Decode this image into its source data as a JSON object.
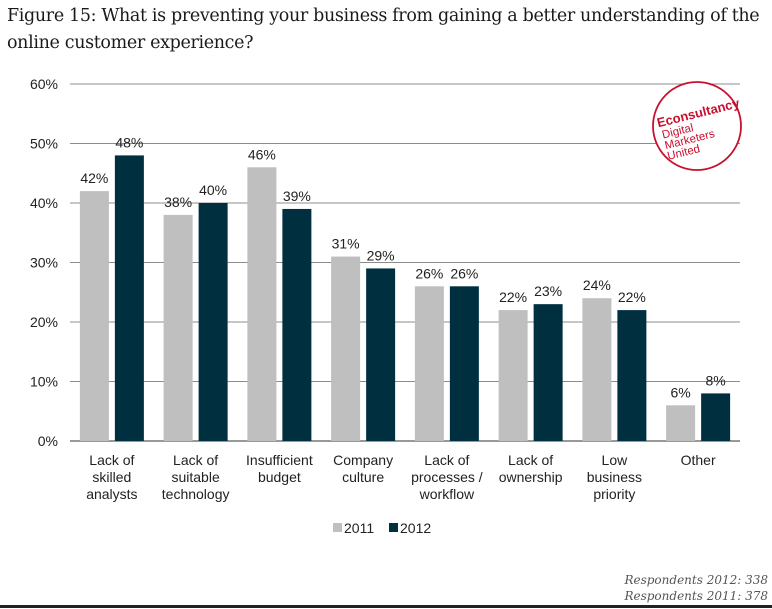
{
  "figure": {
    "title": "Figure 15: What is preventing your business from gaining a better understanding of the online customer experience?"
  },
  "logo": {
    "line1": "Econsultancy",
    "line2": "Digital",
    "line3": "Marketers",
    "line4": "United",
    "mark": "™",
    "color": "#C8102E"
  },
  "respondents": {
    "r2012": "Respondents 2012: 338",
    "r2011": "Respondents 2011: 378"
  },
  "chart_data": {
    "type": "bar",
    "title": "What is preventing your business from gaining a better understanding of the online customer experience?",
    "xlabel": "",
    "ylabel": "",
    "ylim": [
      0,
      60
    ],
    "yticks": [
      0,
      10,
      20,
      30,
      40,
      50,
      60
    ],
    "ytick_labels": [
      "0%",
      "10%",
      "20%",
      "30%",
      "40%",
      "50%",
      "60%"
    ],
    "grid": true,
    "legend_position": "bottom-center",
    "categories": [
      [
        "Lack of",
        "skilled",
        "analysts"
      ],
      [
        "Lack of",
        "suitable",
        "technology"
      ],
      [
        "Insufficient",
        "budget"
      ],
      [
        "Company",
        "culture"
      ],
      [
        "Lack of",
        "processes /",
        "workflow"
      ],
      [
        "Lack of",
        "ownership"
      ],
      [
        "Low",
        "business",
        "priority"
      ],
      [
        "Other"
      ]
    ],
    "series": [
      {
        "name": "2011",
        "color": "#BFBFBF",
        "values": [
          42,
          38,
          46,
          31,
          26,
          22,
          24,
          6
        ],
        "labels": [
          "42%",
          "38%",
          "46%",
          "31%",
          "26%",
          "22%",
          "24%",
          "6%"
        ]
      },
      {
        "name": "2012",
        "color": "#003040",
        "values": [
          48,
          40,
          39,
          29,
          26,
          23,
          22,
          8
        ],
        "labels": [
          "48%",
          "40%",
          "39%",
          "29%",
          "26%",
          "23%",
          "22%",
          "8%"
        ]
      }
    ]
  }
}
